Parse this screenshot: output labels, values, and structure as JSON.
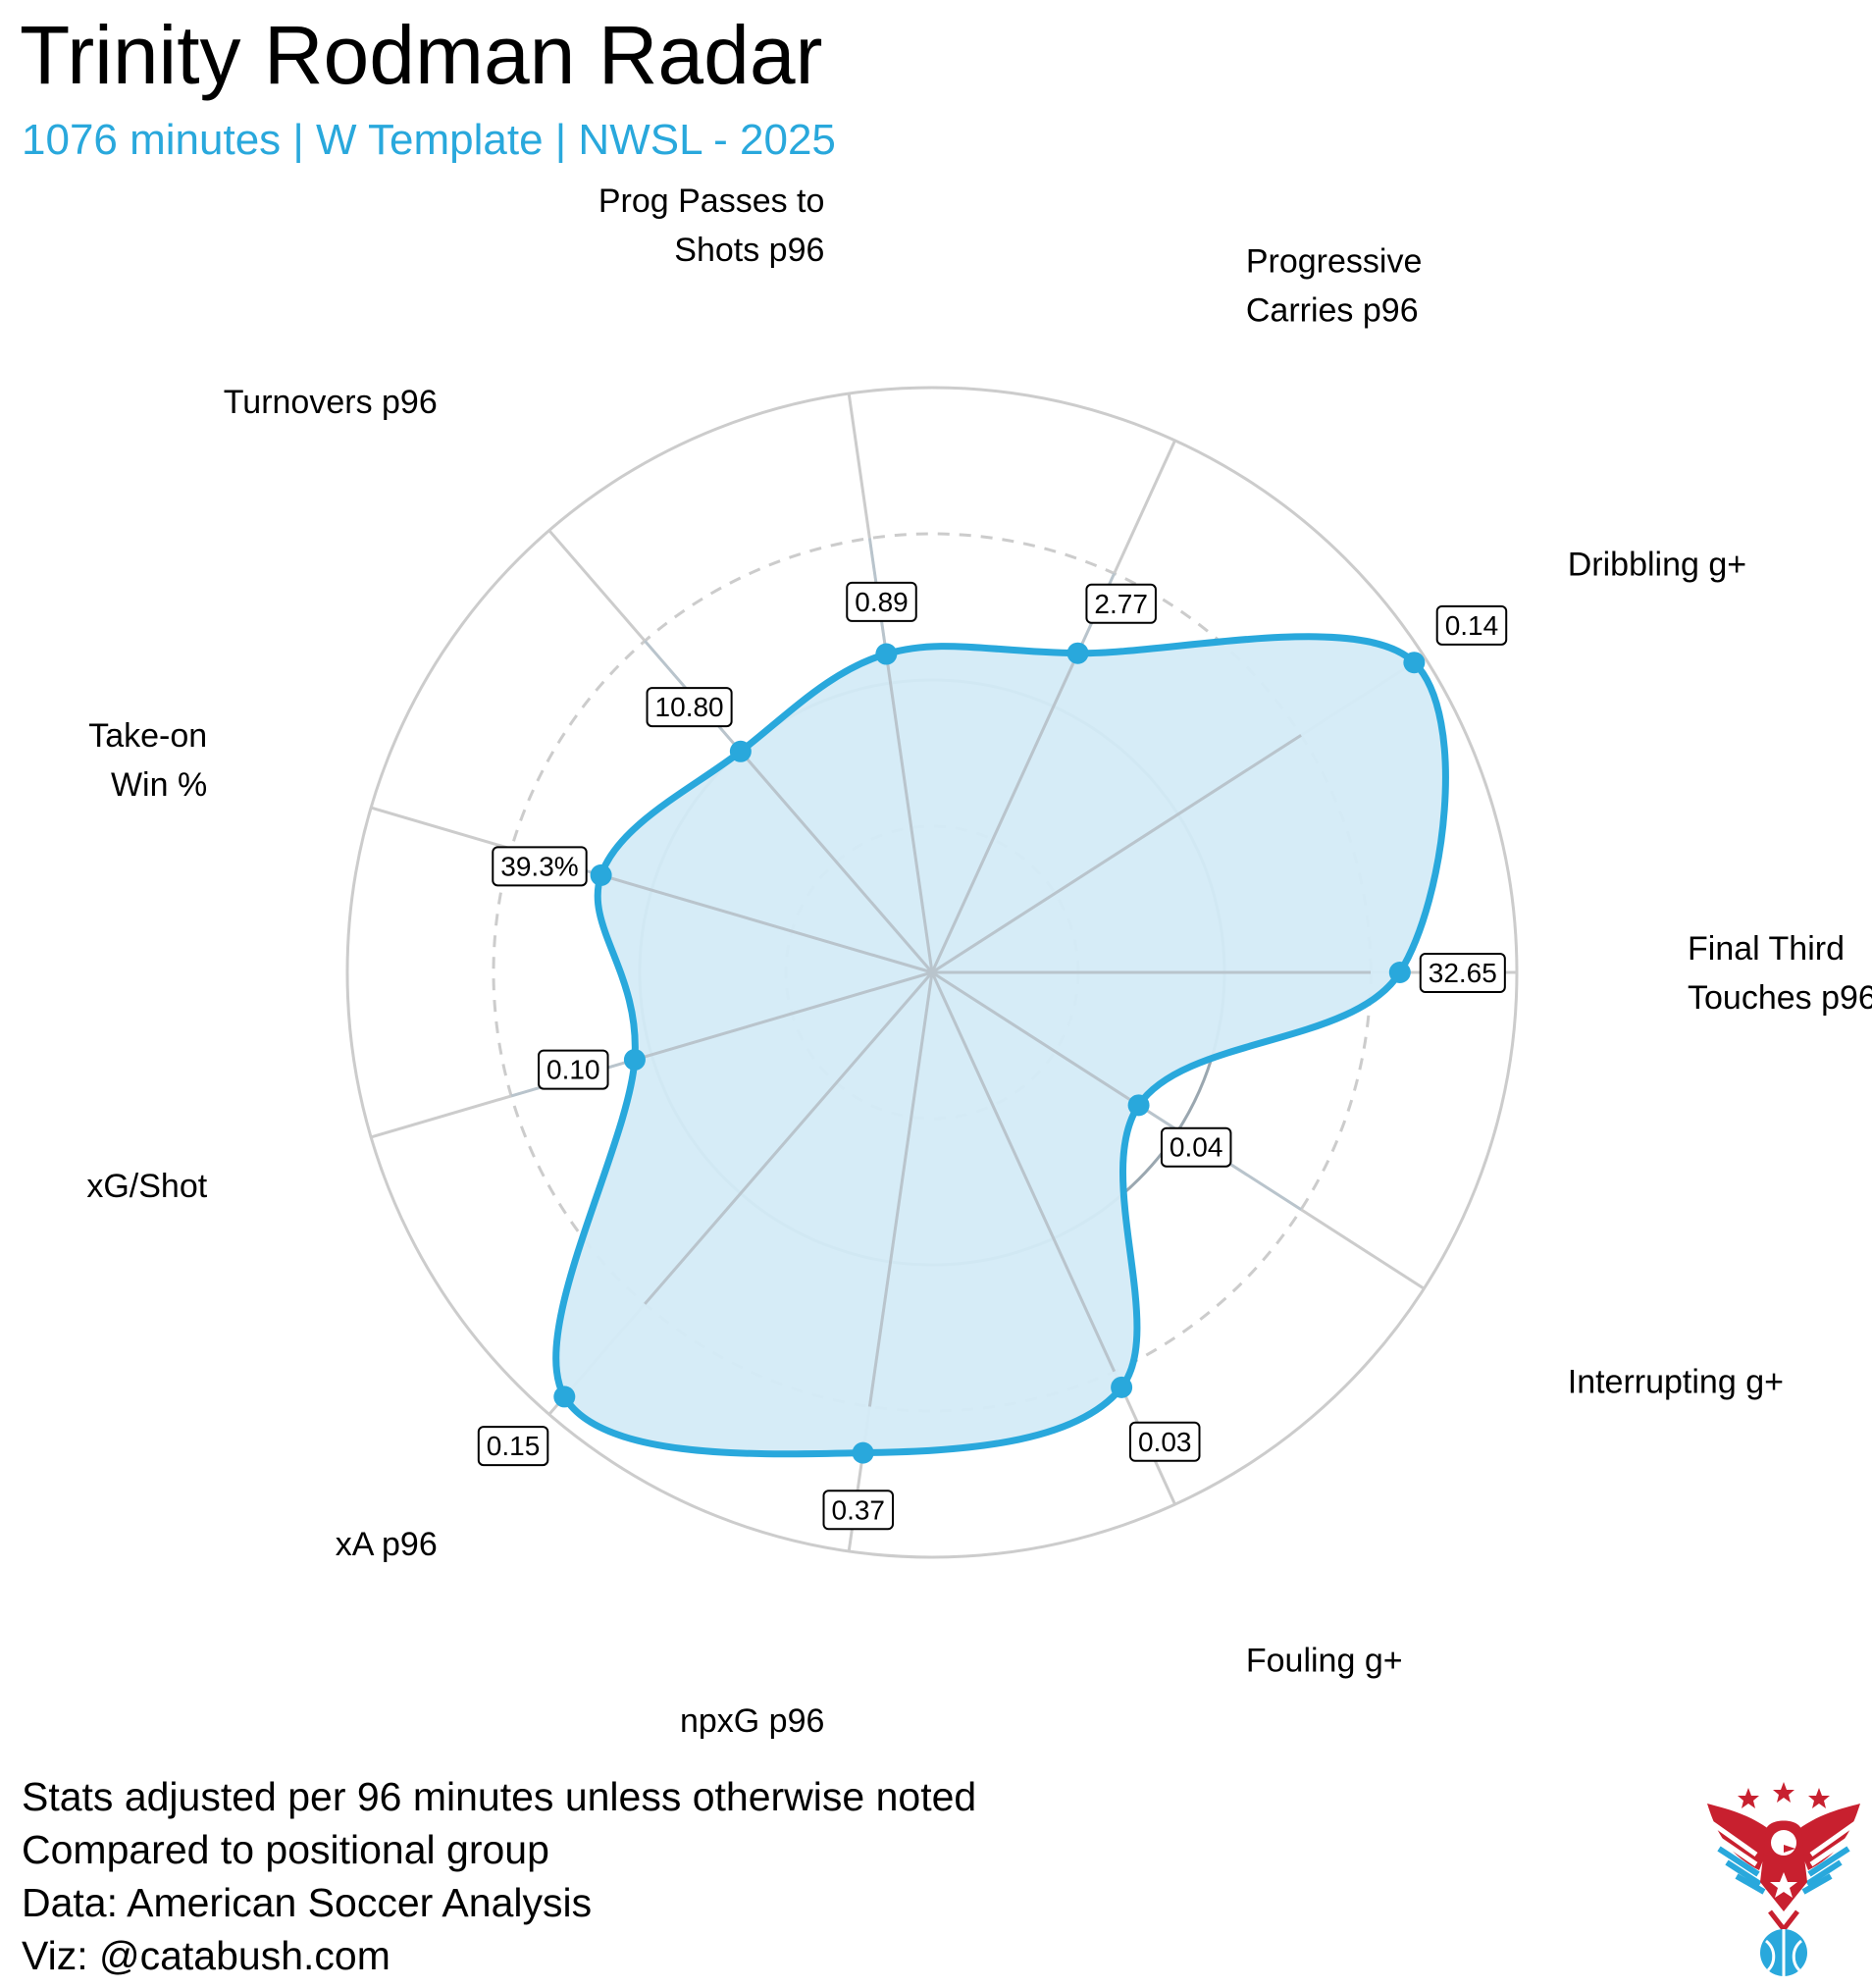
{
  "title": "Trinity Rodman Radar",
  "subtitle": "1076 minutes | W Template | NWSL - 2025",
  "colors": {
    "accent": "#29a8dc",
    "fill": "#d4ebf7",
    "ring": "#cccccc",
    "inner_ring": "#9aa7b0",
    "logo_red": "#c8202f",
    "logo_blue": "#29a8dc"
  },
  "footer": {
    "line1": "Stats adjusted per 96 minutes unless otherwise noted",
    "line2": "Compared to positional group",
    "line3": "Data: American Soccer Analysis",
    "line4": "Viz: @catabush.com"
  },
  "chart_data": {
    "type": "radar",
    "scale": "percentile",
    "rlim": [
      0,
      100
    ],
    "gridlines": [
      25,
      50,
      75,
      100
    ],
    "metrics": [
      {
        "label": "Final Third Touches p96",
        "lines": [
          "Final Third",
          "Touches p96"
        ],
        "value_label": "32.65",
        "percentile": 80
      },
      {
        "label": "Interrupting g+",
        "lines": [
          "Interrupting g+"
        ],
        "value_label": "0.04",
        "percentile": 42
      },
      {
        "label": "Fouling g+",
        "lines": [
          "Fouling g+"
        ],
        "value_label": "0.03",
        "percentile": 78
      },
      {
        "label": "npxG p96",
        "lines": [
          "npxG p96"
        ],
        "value_label": "0.37",
        "percentile": 83
      },
      {
        "label": "xA p96",
        "lines": [
          "xA p96"
        ],
        "value_label": "0.15",
        "percentile": 96
      },
      {
        "label": "xG/Shot",
        "lines": [
          "xG/Shot"
        ],
        "value_label": "0.10",
        "percentile": 53
      },
      {
        "label": "Take-on Win %",
        "lines": [
          "Take-on",
          "Win %"
        ],
        "value_label": "39.3%",
        "percentile": 59
      },
      {
        "label": "Turnovers p96",
        "lines": [
          "Turnovers p96"
        ],
        "value_label": "10.80",
        "percentile": 50
      },
      {
        "label": "Prog Passes to Shots p96",
        "lines": [
          "Prog Passes to",
          "Shots p96"
        ],
        "value_label": "0.89",
        "percentile": 55
      },
      {
        "label": "Progressive Carries p96",
        "lines": [
          "Progressive",
          "Carries p96"
        ],
        "value_label": "2.77",
        "percentile": 60
      },
      {
        "label": "Dribbling g+",
        "lines": [
          "Dribbling g+"
        ],
        "value_label": "0.14",
        "percentile": 98
      }
    ]
  }
}
